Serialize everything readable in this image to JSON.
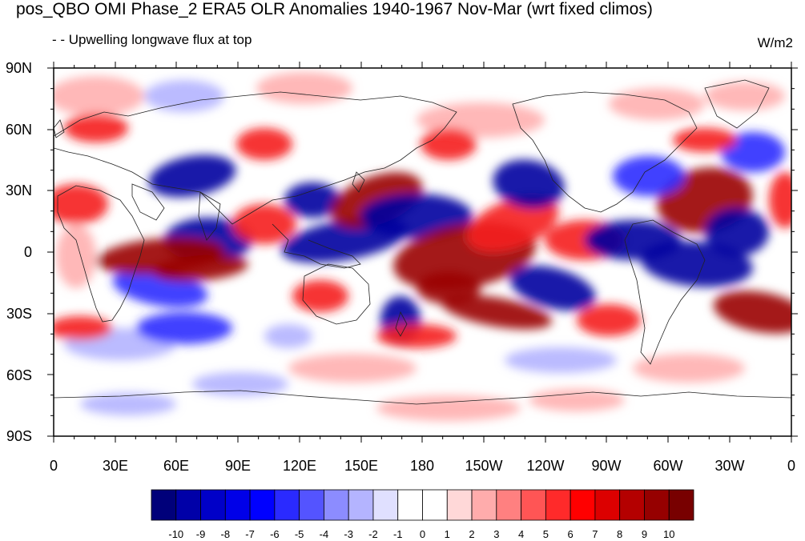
{
  "title": "pos_QBO OMI Phase_2 ERA5 OLR Anomalies 1940-1967 Nov-Mar (wrt fixed climos)",
  "subtitle": "- - Upwelling longwave flux at top",
  "units": "W/m2",
  "lat_labels": [
    "90N",
    "60N",
    "30N",
    "0",
    "30S",
    "60S",
    "90S"
  ],
  "lon_labels": [
    "0",
    "30E",
    "60E",
    "90E",
    "120E",
    "150E",
    "180",
    "150W",
    "120W",
    "90W",
    "60W",
    "30W",
    "0"
  ],
  "colorbar": {
    "labels": [
      "-10",
      "-9",
      "-8",
      "-7",
      "-6",
      "-5",
      "-4",
      "-3",
      "-2",
      "-1",
      "0",
      "1",
      "2",
      "3",
      "4",
      "5",
      "6",
      "7",
      "8",
      "9",
      "10"
    ],
    "colors": [
      "#00007a",
      "#0000a8",
      "#0000c8",
      "#0000e8",
      "#0000ff",
      "#2a2aff",
      "#5454ff",
      "#8c8cff",
      "#b4b4ff",
      "#e0e0ff",
      "#ffffff",
      "#ffffff",
      "#ffd8d8",
      "#ffacac",
      "#ff8080",
      "#ff5555",
      "#ff2a2a",
      "#ff0000",
      "#dc0000",
      "#b40000",
      "#960000",
      "#780000"
    ]
  },
  "colors": {
    "strong_red": "#9a0000",
    "red": "#f52020",
    "light_red": "#ffb0b0",
    "strong_blue": "#0000a0",
    "blue": "#2b2bff",
    "light_blue": "#b4b4ff"
  }
}
